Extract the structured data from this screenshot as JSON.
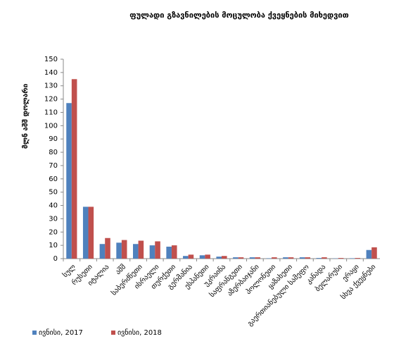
{
  "chart_data": {
    "type": "bar",
    "title": "ფულადი გზავნილების მოცულობა ქვეყნების მიხედვით",
    "y_label": "მლნ აშშ დოლარი",
    "categories": [
      "სულ",
      "რუსეთი",
      "იტალია",
      "აშშ",
      "საბერძნეთი",
      "ისრაელი",
      "თურქეთი",
      "გერმანია",
      "ესპანეთი",
      "უკრაინა",
      "საფრანგეთი",
      "აზერბაიჯანი",
      "პოლონეთი",
      "ყაზახეთი",
      "გაერთიანებული სამეფო",
      "კანადა",
      "ბელარუსი",
      "ერაყი",
      "სხვა ქვეყნები"
    ],
    "series": [
      {
        "name": "ივნისი, 2017",
        "color": "#4f81bd",
        "values": [
          117,
          39,
          11,
          12,
          11,
          10,
          9,
          2,
          2.5,
          1.5,
          1,
          1,
          0.3,
          1,
          1,
          0.5,
          0.2,
          0.3,
          6.5
        ]
      },
      {
        "name": "ივნისი, 2018",
        "color": "#c0504d",
        "values": [
          135,
          39,
          15.5,
          14,
          13.5,
          13,
          10,
          3,
          3,
          2,
          1,
          1,
          1,
          1,
          1,
          1,
          0.5,
          0.5,
          8.5
        ]
      }
    ],
    "ylim": [
      0,
      150
    ],
    "yticks": [
      0,
      10,
      20,
      30,
      40,
      50,
      60,
      70,
      80,
      90,
      100,
      110,
      120,
      130,
      140,
      150
    ],
    "grid": false,
    "legend": "bottom"
  }
}
